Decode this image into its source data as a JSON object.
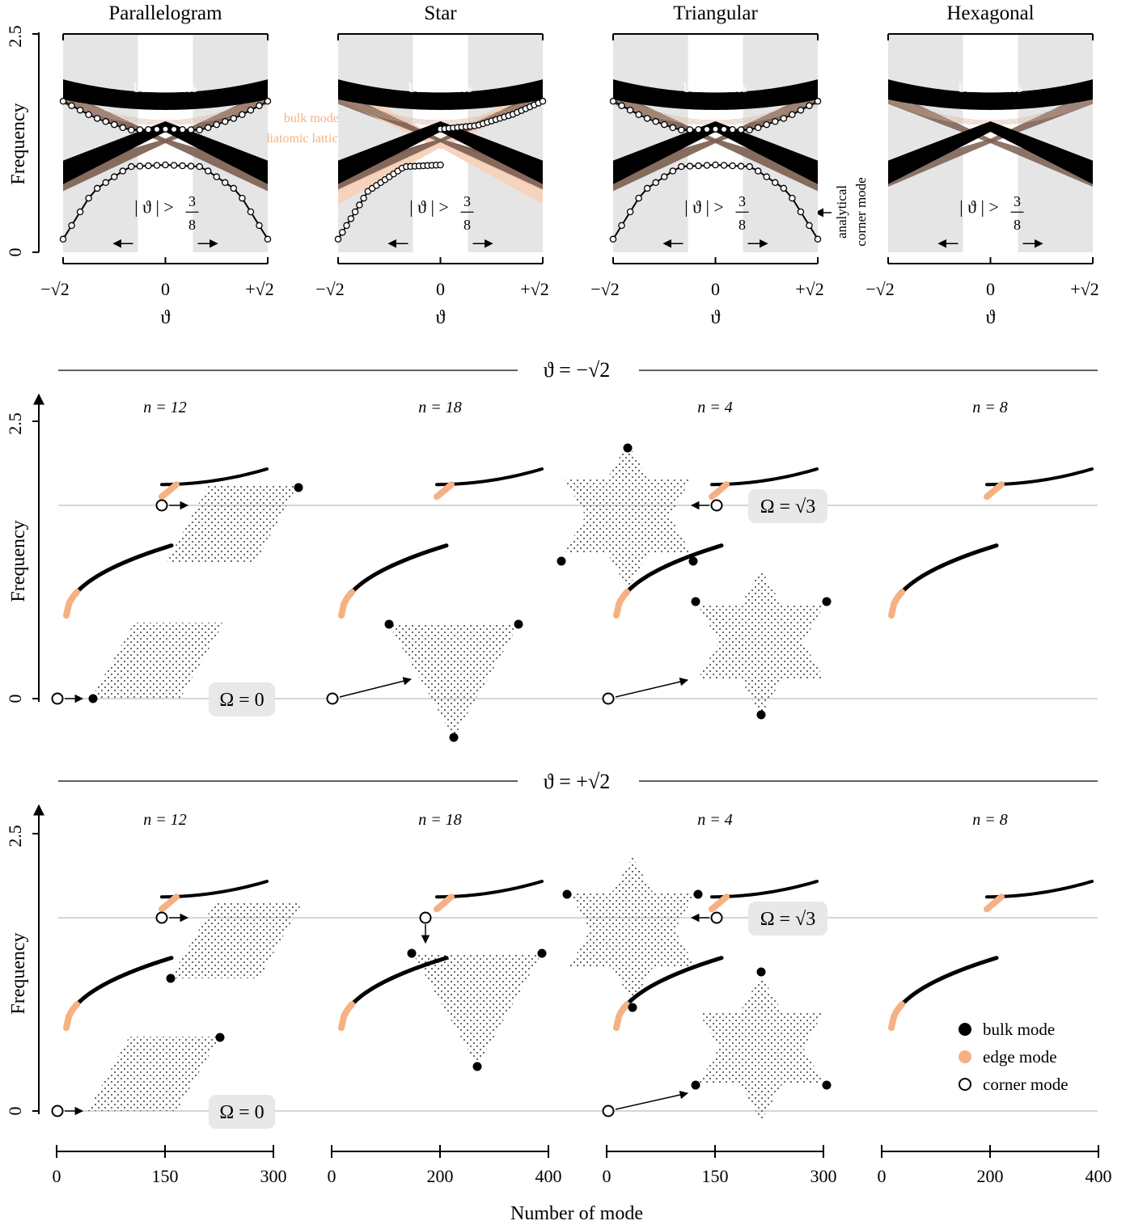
{
  "figure": {
    "colors": {
      "bulk": "#000000",
      "edge": "#f5b183",
      "edge_band": "#7a5e50",
      "edge_band_light": "#f6d2bb",
      "shaded": "#e5e5e5",
      "gridline": "#bdbdbd",
      "label_box": "#e8e8e8"
    },
    "top_row": {
      "ylabel": "Frequency",
      "y_ticks": [
        "0",
        "2.5"
      ],
      "x_ticks": [
        "−√2",
        "0",
        "+√2"
      ],
      "xlabel": "ϑ",
      "panel_titles": [
        "Parallelogram",
        "Star",
        "Triangular",
        "Hexagonal"
      ],
      "bulk_label": "bulk modes",
      "diatomic_label_line1": "bulk modes",
      "diatomic_label_line2": "diatomic lattice",
      "condition_prefix": "| ϑ | >",
      "condition_num": "3",
      "condition_den": "8",
      "analytical_line1": "analytical",
      "analytical_line2": "corner mode"
    },
    "middle_row": {
      "section_title": "ϑ = −√2",
      "ylabel": "Frequency",
      "y_ticks": [
        "0",
        "2.5"
      ],
      "n_labels": [
        "n = 12",
        "n = 18",
        "n = 4",
        "n = 8"
      ],
      "omega_zero": "Ω = 0",
      "omega_sqrt3": "Ω = √3"
    },
    "bottom_row": {
      "section_title": "ϑ = +√2",
      "ylabel": "Frequency",
      "y_ticks": [
        "0",
        "2.5"
      ],
      "n_labels": [
        "n = 12",
        "n = 18",
        "n = 4",
        "n = 8"
      ],
      "omega_zero": "Ω = 0",
      "omega_sqrt3": "Ω = √3"
    },
    "x_axes": {
      "panel_ticks": [
        [
          "0",
          "150",
          "300"
        ],
        [
          "0",
          "200",
          "400"
        ],
        [
          "0",
          "150",
          "300"
        ],
        [
          "0",
          "200",
          "400"
        ]
      ],
      "xlabel": "Number of mode"
    },
    "legend": {
      "bulk": "bulk mode",
      "edge": "edge mode",
      "corner": "corner mode"
    }
  },
  "chart_data": [
    {
      "type": "line",
      "title": "Parallelogram",
      "x_range": [
        "−√2",
        "+√2"
      ],
      "ylim": [
        0,
        2.5
      ],
      "series": [
        {
          "x": [
            -1.414,
            -1.0,
            -0.5,
            0.0,
            0.5,
            1.0,
            1.414
          ],
          "y": [
            1.73,
            1.55,
            1.4,
            1.41,
            1.4,
            1.55,
            1.73
          ]
        },
        {
          "x": [
            -1.414,
            -1.0,
            -0.5,
            0.0,
            0.5,
            1.0,
            1.414
          ],
          "y": [
            0.15,
            0.7,
            0.98,
            1.0,
            0.98,
            0.7,
            0.15
          ]
        }
      ]
    },
    {
      "type": "line",
      "title": "Star",
      "x_range": [
        "−√2",
        "+√2"
      ],
      "ylim": [
        0,
        2.5
      ],
      "series": [
        {
          "x": [
            0.0,
            0.5,
            1.0,
            1.414
          ],
          "y": [
            1.41,
            1.45,
            1.58,
            1.73
          ]
        },
        {
          "x": [
            -1.414,
            -1.0,
            -0.5,
            0.0
          ],
          "y": [
            0.15,
            0.7,
            0.98,
            1.0
          ]
        }
      ]
    },
    {
      "type": "line",
      "title": "Triangular",
      "x_range": [
        "−√2",
        "+√2"
      ],
      "ylim": [
        0,
        2.5
      ],
      "series": [
        {
          "x": [
            -1.414,
            -1.0,
            -0.5,
            0.0,
            0.5,
            1.0,
            1.414
          ],
          "y": [
            1.73,
            1.55,
            1.4,
            1.41,
            1.4,
            1.55,
            1.73
          ]
        },
        {
          "x": [
            -1.414,
            -1.0,
            -0.5,
            0.0,
            0.5,
            1.0,
            1.414
          ],
          "y": [
            0.15,
            0.7,
            0.98,
            1.0,
            0.98,
            0.7,
            0.15
          ]
        }
      ]
    },
    {
      "type": "area",
      "title": "Hexagonal",
      "x_range": [
        "−√2",
        "+√2"
      ],
      "ylim": [
        0,
        2.5
      ],
      "series": []
    },
    {
      "type": "scatter",
      "title": "ϑ = −√2",
      "panels": [
        {
          "n": 12,
          "xlim": [
            0,
            300
          ],
          "corner_frequencies": [
            0,
            1.73
          ]
        },
        {
          "n": 18,
          "xlim": [
            0,
            400
          ],
          "corner_frequencies": [
            0
          ]
        },
        {
          "n": 4,
          "xlim": [
            0,
            300
          ],
          "corner_frequencies": [
            0,
            1.73
          ]
        },
        {
          "n": 8,
          "xlim": [
            0,
            400
          ],
          "corner_frequencies": []
        }
      ]
    },
    {
      "type": "scatter",
      "title": "ϑ = +√2",
      "panels": [
        {
          "n": 12,
          "xlim": [
            0,
            300
          ],
          "corner_frequencies": [
            0,
            1.73
          ]
        },
        {
          "n": 18,
          "xlim": [
            0,
            400
          ],
          "corner_frequencies": [
            1.73
          ]
        },
        {
          "n": 4,
          "xlim": [
            0,
            300
          ],
          "corner_frequencies": [
            0,
            1.73
          ]
        },
        {
          "n": 8,
          "xlim": [
            0,
            400
          ],
          "corner_frequencies": []
        }
      ]
    }
  ]
}
